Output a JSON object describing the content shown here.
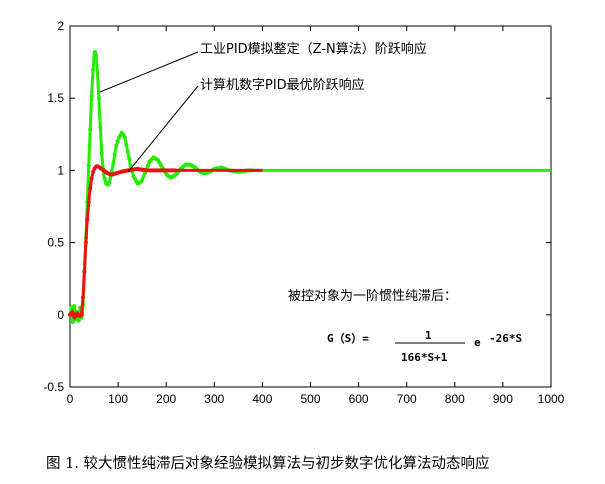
{
  "chart_data": {
    "type": "line",
    "xlim": [
      0,
      1000
    ],
    "ylim": [
      -0.5,
      2
    ],
    "xticks": [
      0,
      100,
      200,
      300,
      400,
      500,
      600,
      700,
      800,
      900,
      1000
    ],
    "yticks": [
      -0.5,
      0,
      0.5,
      1,
      1.5,
      2
    ],
    "ytick_labels": [
      "-0.5",
      "0",
      "0.5",
      "1",
      "1.5",
      "2"
    ],
    "grid": false,
    "series": [
      {
        "name": "工业PID模拟整定（Z-N算法）阶跃响应",
        "color": "#22ee00",
        "points": [
          [
            0,
            0
          ],
          [
            3,
            0.05
          ],
          [
            6,
            -0.05
          ],
          [
            9,
            0.06
          ],
          [
            12,
            -0.03
          ],
          [
            15,
            0.02
          ],
          [
            18,
            -0.04
          ],
          [
            21,
            0.05
          ],
          [
            24,
            -0.02
          ],
          [
            26,
            0
          ],
          [
            29,
            0.22
          ],
          [
            32,
            0.45
          ],
          [
            35,
            0.7
          ],
          [
            38,
            0.95
          ],
          [
            41,
            1.2
          ],
          [
            44,
            1.45
          ],
          [
            47,
            1.65
          ],
          [
            50,
            1.79
          ],
          [
            52,
            1.83
          ],
          [
            54,
            1.8
          ],
          [
            57,
            1.68
          ],
          [
            60,
            1.5
          ],
          [
            63,
            1.3
          ],
          [
            66,
            1.12
          ],
          [
            70,
            0.97
          ],
          [
            75,
            0.91
          ],
          [
            80,
            0.9
          ],
          [
            85,
            0.96
          ],
          [
            90,
            1.05
          ],
          [
            96,
            1.17
          ],
          [
            102,
            1.23
          ],
          [
            108,
            1.26
          ],
          [
            114,
            1.23
          ],
          [
            120,
            1.13
          ],
          [
            126,
            1.03
          ],
          [
            132,
            0.96
          ],
          [
            140,
            0.91
          ],
          [
            148,
            0.92
          ],
          [
            156,
            0.98
          ],
          [
            165,
            1.06
          ],
          [
            174,
            1.09
          ],
          [
            183,
            1.07
          ],
          [
            192,
            1.02
          ],
          [
            201,
            0.97
          ],
          [
            210,
            0.95
          ],
          [
            220,
            0.97
          ],
          [
            230,
            1.01
          ],
          [
            240,
            1.04
          ],
          [
            250,
            1.04
          ],
          [
            260,
            1.02
          ],
          [
            270,
            0.99
          ],
          [
            280,
            0.98
          ],
          [
            290,
            0.99
          ],
          [
            300,
            1.01
          ],
          [
            315,
            1.02
          ],
          [
            330,
            1.0
          ],
          [
            350,
            0.99
          ],
          [
            370,
            1.0
          ],
          [
            400,
            1.0
          ],
          [
            450,
            1.0
          ],
          [
            500,
            1.0
          ],
          [
            600,
            1.0
          ],
          [
            700,
            1.0
          ],
          [
            800,
            1.0
          ],
          [
            900,
            1.0
          ],
          [
            1000,
            1.0
          ]
        ]
      },
      {
        "name": "计算机数字PID最优阶跃响应",
        "color": "#ee1111",
        "points": [
          [
            0,
            0
          ],
          [
            5,
            0.02
          ],
          [
            10,
            -0.02
          ],
          [
            15,
            0.01
          ],
          [
            20,
            -0.01
          ],
          [
            24,
            0
          ],
          [
            27,
            0.12
          ],
          [
            30,
            0.3
          ],
          [
            33,
            0.5
          ],
          [
            36,
            0.66
          ],
          [
            40,
            0.82
          ],
          [
            44,
            0.93
          ],
          [
            48,
            0.99
          ],
          [
            52,
            1.02
          ],
          [
            56,
            1.03
          ],
          [
            62,
            1.02
          ],
          [
            70,
            1.0
          ],
          [
            78,
            0.98
          ],
          [
            86,
            0.97
          ],
          [
            96,
            0.98
          ],
          [
            106,
            0.99
          ],
          [
            120,
            1.0
          ],
          [
            140,
            1.01
          ],
          [
            160,
            1.0
          ],
          [
            200,
            1.0
          ],
          [
            260,
            1.0
          ],
          [
            330,
            1.0
          ],
          [
            400,
            1.0
          ]
        ]
      }
    ],
    "annotations": {
      "green_label": "工业PID模拟整定（Z-N算法）阶跃响应",
      "red_label": "计算机数字PID最优阶跃响应",
      "plant_desc": "被控对象为一阶惯性纯滞后：",
      "tf_lhs": "G（S）=",
      "tf_num": "1",
      "tf_den": "166*S+1",
      "tf_exp_base": "e",
      "tf_exp": "-26*S"
    }
  },
  "caption": "图 1. 较大惯性纯滞后对象经验模拟算法与初步数字优化算法动态响应"
}
